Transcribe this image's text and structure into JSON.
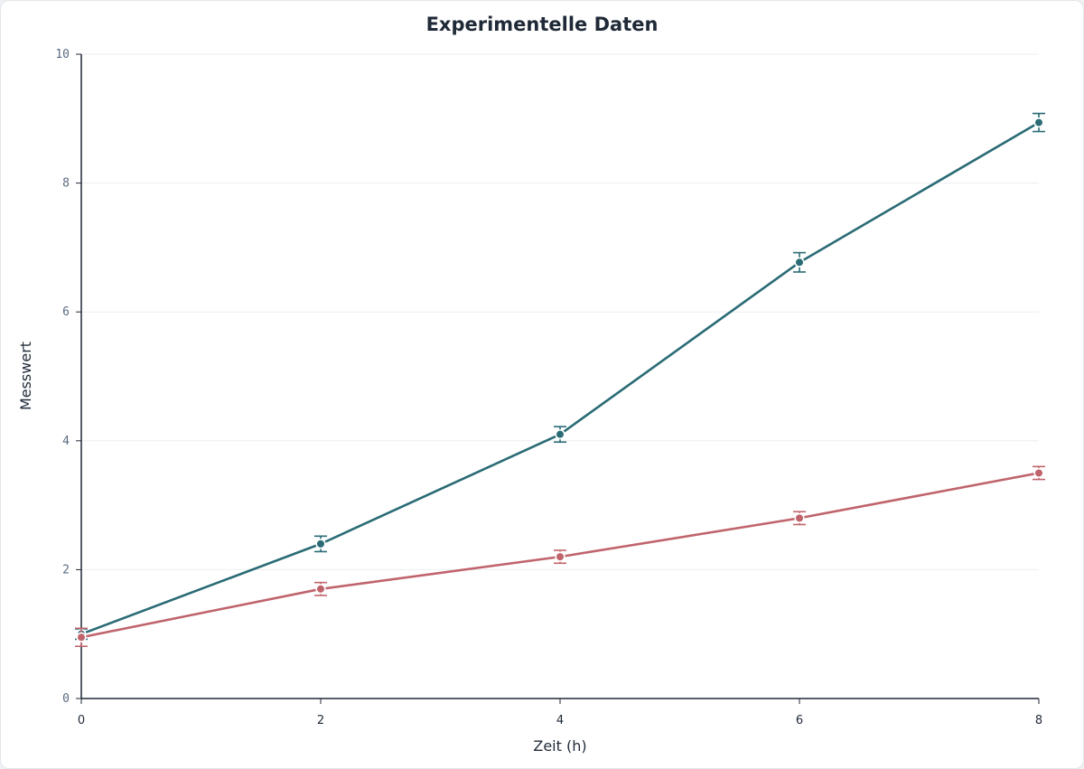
{
  "chart_data": {
    "type": "line",
    "title": "Experimentelle Daten",
    "xlabel": "Zeit (h)",
    "ylabel": "Messwert",
    "xlim": [
      0,
      8
    ],
    "ylim": [
      0,
      10
    ],
    "x_ticks": [
      "0",
      "2",
      "4",
      "6",
      "8"
    ],
    "y_ticks": [
      "0",
      "2",
      "4",
      "6",
      "8",
      "10"
    ],
    "grid": true,
    "legend": "none",
    "x": [
      0,
      2,
      4,
      6,
      8
    ],
    "series": [
      {
        "color": "#2a6b75",
        "values": [
          1.0,
          2.4,
          4.1,
          6.77,
          8.94
        ],
        "errors": [
          0.08,
          0.12,
          0.12,
          0.15,
          0.14
        ]
      },
      {
        "color": "#c0646c",
        "values": [
          0.95,
          1.7,
          2.2,
          2.8,
          3.5
        ],
        "errors": [
          0.14,
          0.1,
          0.1,
          0.1,
          0.1
        ]
      }
    ]
  }
}
